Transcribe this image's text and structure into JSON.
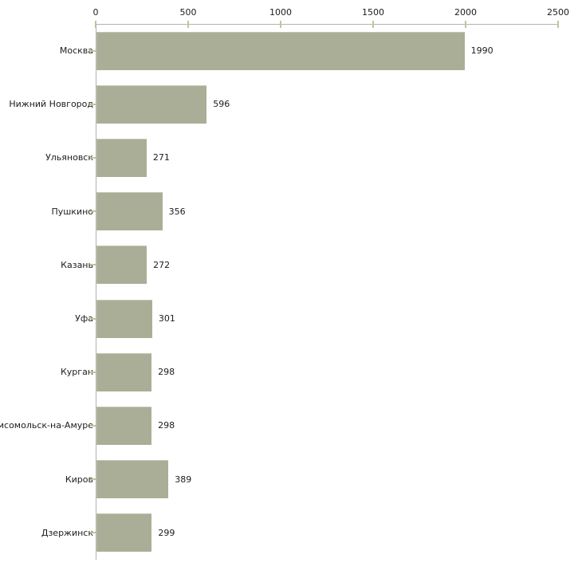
{
  "chart_data": {
    "type": "bar",
    "orientation": "horizontal",
    "title": "",
    "xlabel": "",
    "ylabel": "",
    "categories": [
      "Москва",
      "Нижний Новгород",
      "Ульяновск",
      "Пушкино",
      "Казань",
      "Уфа",
      "Курган",
      "мсомольск-на-Амуре",
      "Киров",
      "Дзержинск"
    ],
    "values": [
      1990,
      596,
      271,
      356,
      272,
      301,
      298,
      298,
      389,
      299
    ],
    "value_labels": [
      "1990",
      "596",
      "271",
      "356",
      "272",
      "301",
      "298",
      "298",
      "389",
      "299"
    ],
    "x_ticks": [
      0,
      500,
      1000,
      1500,
      2000,
      2500
    ],
    "x_tick_labels": [
      "0",
      "500",
      "1000",
      "1500",
      "2000",
      "2500"
    ],
    "xlim": [
      0,
      2500
    ],
    "grid": false,
    "legend": false,
    "axis_position": "top",
    "colors": {
      "bar": "#aaae96",
      "axis_line": "#b2b2b2",
      "tick_mark": "#c6c29c",
      "text": "#1c1c1c",
      "background": "#ffffff"
    }
  }
}
